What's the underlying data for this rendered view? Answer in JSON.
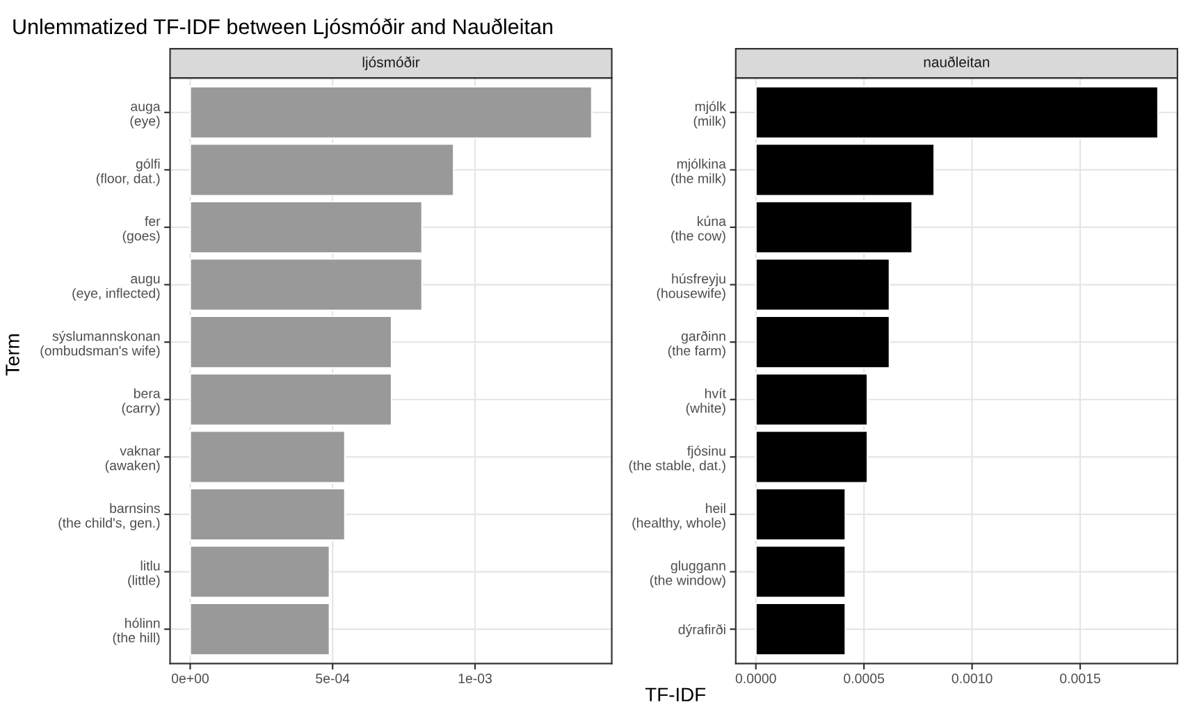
{
  "chart_data": [
    {
      "type": "bar",
      "orientation": "horizontal",
      "title": "Unlemmatized TF-IDF between Ljósmóðir and Nauðleitan",
      "subtitle": "ljósmóðir",
      "xlabel": "TF-IDF",
      "ylabel": "Term",
      "categories": [
        "auga\n(eye)",
        "gólfi\n(floor, dat.)",
        "fer\n(goes)",
        "augu\n(eye, inflected)",
        "sýslumannskonan\n(ombudsman's wife)",
        "bera\n(carry)",
        "vaknar\n(awaken)",
        "barnsins\n(the child's, gen.)",
        "litlu\n(little)",
        "hólinn\n(the hill)"
      ],
      "values": [
        0.00141,
        0.000925,
        0.000814,
        0.000814,
        0.000707,
        0.000707,
        0.000543,
        0.000543,
        0.000489,
        0.000489
      ],
      "color": "#999999",
      "xlim": [
        -7.07e-05,
        0.00148
      ],
      "xticks": [
        {
          "value": 0,
          "label": "0e+00"
        },
        {
          "value": 0.0005,
          "label": "5e-04"
        },
        {
          "value": 0.001,
          "label": "1e-03"
        }
      ],
      "grid": true
    },
    {
      "type": "bar",
      "orientation": "horizontal",
      "subtitle": "nauðleitan",
      "categories": [
        "mjólk\n(milk)",
        "mjólkina\n(the milk)",
        "kúna\n(the cow)",
        "húsfreyju\n(housewife)",
        "garðinn\n(the farm)",
        "hvít\n(white)",
        "fjósinu\n(the stable, dat.)",
        "heil\n(healthy, whole)",
        "gluggann\n(the window)",
        "dýrafirði"
      ],
      "values": [
        0.00186,
        0.000825,
        0.000723,
        0.000618,
        0.000618,
        0.000516,
        0.000516,
        0.000414,
        0.000414,
        0.000414
      ],
      "color": "#000000",
      "xlim": [
        -9.3e-05,
        0.00195
      ],
      "xticks": [
        {
          "value": 0,
          "label": "0.0000"
        },
        {
          "value": 0.0005,
          "label": "0.0005"
        },
        {
          "value": 0.001,
          "label": "0.0010"
        },
        {
          "value": 0.0015,
          "label": "0.0015"
        }
      ],
      "grid": true
    }
  ]
}
